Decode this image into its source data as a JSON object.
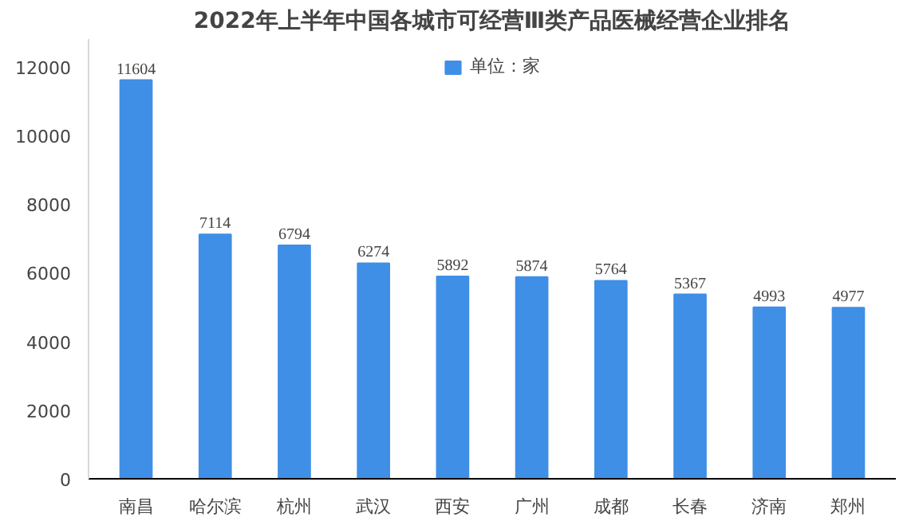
{
  "chart_data": {
    "type": "bar",
    "title": "2022年上半年中国各城市可经营Ⅲ类产品医械经营企业排名",
    "categories": [
      "南昌",
      "哈尔滨",
      "杭州",
      "武汉",
      "西安",
      "广州",
      "成都",
      "长春",
      "济南",
      "郑州"
    ],
    "series": [
      {
        "name": "单位：家",
        "color": "#3f8fe6",
        "values": [
          11604,
          7114,
          6794,
          6274,
          5892,
          5874,
          5764,
          5367,
          4993,
          4977
        ]
      }
    ],
    "ylim": [
      0,
      12800
    ],
    "yticks": [
      0,
      2000,
      4000,
      6000,
      8000,
      10000,
      12000
    ],
    "data_labels": true,
    "legend": "top",
    "grid": false
  }
}
